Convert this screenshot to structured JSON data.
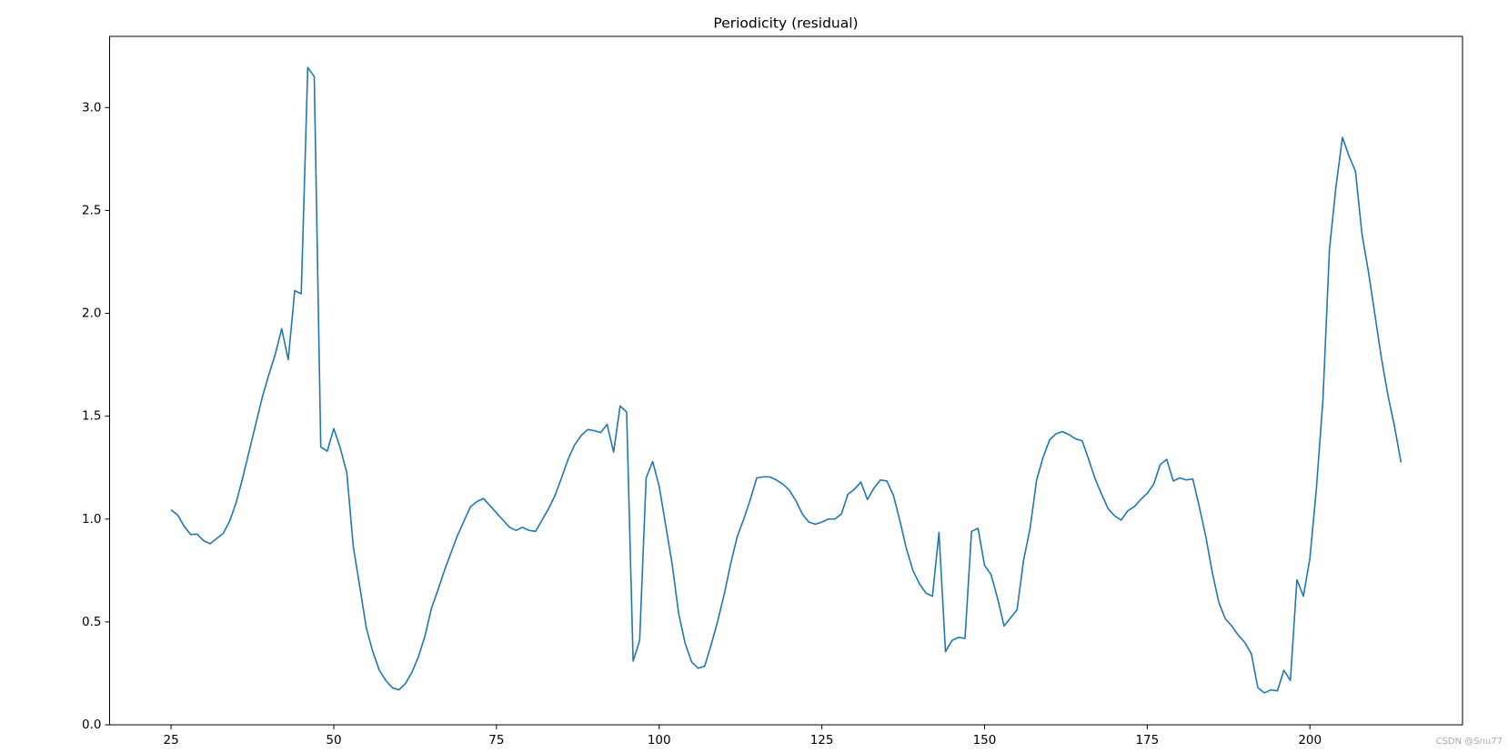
{
  "chart_data": {
    "type": "line",
    "title": "Periodicity (residual)",
    "x": [
      25,
      26,
      27,
      28,
      29,
      30,
      31,
      32,
      33,
      34,
      35,
      36,
      37,
      38,
      39,
      40,
      41,
      42,
      43,
      44,
      45,
      46,
      47,
      48,
      49,
      50,
      51,
      52,
      53,
      54,
      55,
      56,
      57,
      58,
      59,
      60,
      61,
      62,
      63,
      64,
      65,
      66,
      67,
      68,
      69,
      70,
      71,
      72,
      73,
      74,
      75,
      76,
      77,
      78,
      79,
      80,
      81,
      82,
      83,
      84,
      85,
      86,
      87,
      88,
      89,
      90,
      91,
      92,
      93,
      94,
      95,
      96,
      97,
      98,
      99,
      100,
      101,
      102,
      103,
      104,
      105,
      106,
      107,
      108,
      109,
      110,
      111,
      112,
      113,
      114,
      115,
      116,
      117,
      118,
      119,
      120,
      121,
      122,
      123,
      124,
      125,
      126,
      127,
      128,
      129,
      130,
      131,
      132,
      133,
      134,
      135,
      136,
      137,
      138,
      139,
      140,
      141,
      142,
      143,
      144,
      145,
      146,
      147,
      148,
      149,
      150,
      151,
      152,
      153,
      154,
      155,
      156,
      157,
      158,
      159,
      160,
      161,
      162,
      163,
      164,
      165,
      166,
      167,
      168,
      169,
      170,
      171,
      172,
      173,
      174,
      175,
      176,
      177,
      178,
      179,
      180,
      181,
      182,
      183,
      184,
      185,
      186,
      187,
      188,
      189,
      190,
      191,
      192,
      193,
      194,
      195,
      196,
      197,
      198,
      199,
      200,
      201,
      202,
      203,
      204,
      205,
      206,
      207,
      208,
      209,
      210,
      211,
      212,
      213,
      214
    ],
    "values": [
      1.045,
      1.02,
      0.965,
      0.925,
      0.927,
      0.895,
      0.88,
      0.905,
      0.93,
      0.99,
      1.08,
      1.2,
      1.33,
      1.46,
      1.59,
      1.7,
      1.8,
      1.925,
      1.775,
      2.11,
      2.095,
      3.195,
      3.15,
      1.35,
      1.33,
      1.44,
      1.345,
      1.225,
      0.865,
      0.67,
      0.47,
      0.355,
      0.265,
      0.215,
      0.18,
      0.17,
      0.2,
      0.255,
      0.33,
      0.43,
      0.565,
      0.655,
      0.75,
      0.835,
      0.92,
      0.99,
      1.06,
      1.085,
      1.1,
      1.065,
      1.03,
      0.995,
      0.96,
      0.945,
      0.96,
      0.945,
      0.94,
      0.995,
      1.05,
      1.115,
      1.2,
      1.29,
      1.36,
      1.405,
      1.435,
      1.43,
      1.42,
      1.46,
      1.325,
      1.55,
      1.52,
      0.31,
      0.41,
      1.2,
      1.28,
      1.16,
      0.97,
      0.78,
      0.54,
      0.395,
      0.305,
      0.275,
      0.285,
      0.39,
      0.505,
      0.635,
      0.785,
      0.915,
      1.0,
      1.095,
      1.2,
      1.205,
      1.205,
      1.19,
      1.17,
      1.14,
      1.09,
      1.025,
      0.985,
      0.975,
      0.985,
      1.0,
      1.0,
      1.025,
      1.12,
      1.145,
      1.18,
      1.095,
      1.15,
      1.19,
      1.185,
      1.115,
      0.99,
      0.855,
      0.75,
      0.685,
      0.64,
      0.625,
      0.935,
      0.355,
      0.41,
      0.425,
      0.42,
      0.94,
      0.955,
      0.775,
      0.73,
      0.615,
      0.48,
      0.52,
      0.56,
      0.8,
      0.955,
      1.19,
      1.3,
      1.385,
      1.415,
      1.425,
      1.41,
      1.39,
      1.38,
      1.29,
      1.195,
      1.12,
      1.05,
      1.015,
      0.995,
      1.04,
      1.06,
      1.095,
      1.125,
      1.17,
      1.265,
      1.29,
      1.185,
      1.2,
      1.19,
      1.195,
      1.06,
      0.915,
      0.74,
      0.595,
      0.515,
      0.48,
      0.435,
      0.4,
      0.345,
      0.18,
      0.155,
      0.17,
      0.165,
      0.265,
      0.215,
      0.705,
      0.625,
      0.81,
      1.15,
      1.58,
      2.31,
      2.615,
      2.855,
      2.765,
      2.69,
      2.385,
      2.2,
      1.99,
      1.78,
      1.6,
      1.45,
      1.275
    ],
    "color": "#1f77b4",
    "xlim": [
      15.55,
      223.45
    ],
    "xticks": [
      25,
      50,
      75,
      100,
      125,
      150,
      175,
      200
    ],
    "ylim": [
      0,
      3.346
    ],
    "yticks": [
      {
        "value": 0,
        "label": "0.0"
      },
      0.5,
      {
        "value": 1,
        "label": "1.0"
      },
      1.5,
      {
        "value": 2,
        "label": "2.0"
      },
      2.5,
      {
        "value": 3,
        "label": "3.0"
      }
    ],
    "grid": false,
    "watermark": "CSDN @Snu77"
  }
}
